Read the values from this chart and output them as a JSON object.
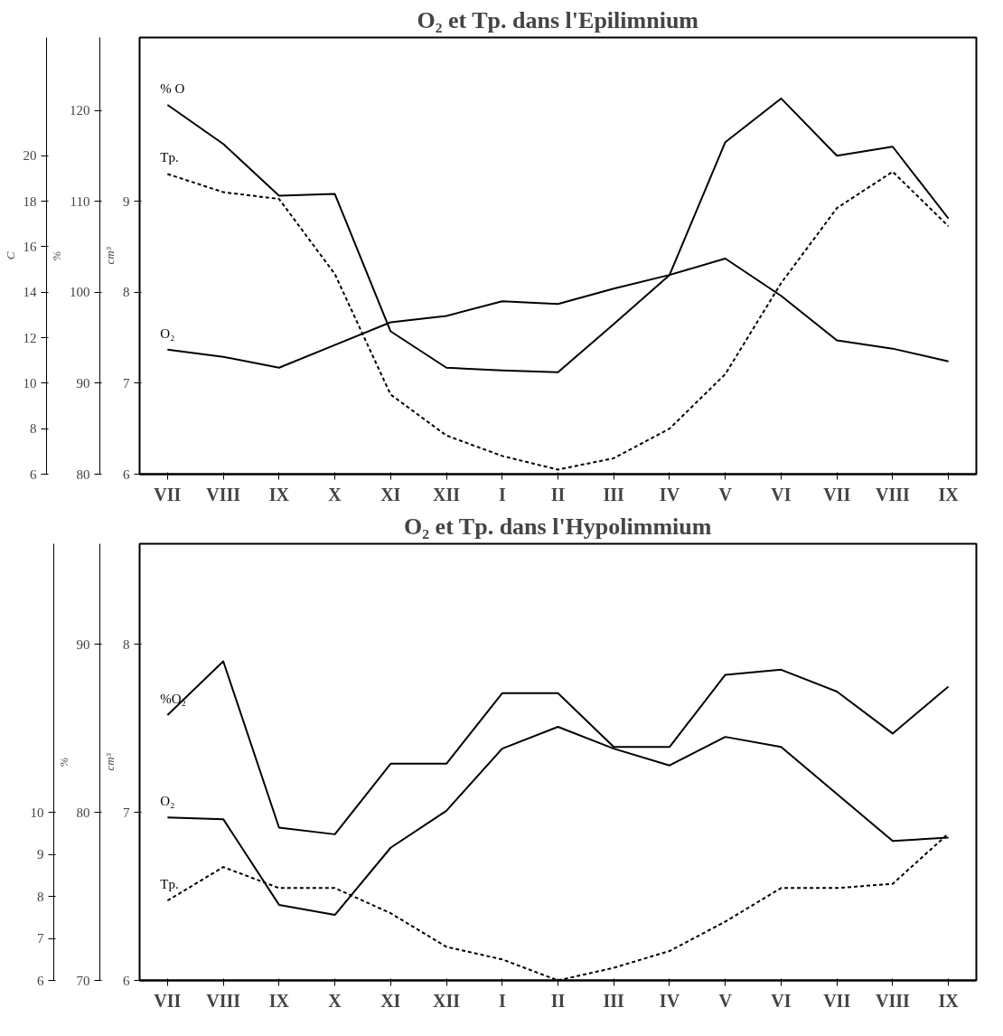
{
  "chart_data": [
    {
      "type": "line",
      "title": "O₂ et Tp. dans l'Epilimnium",
      "categories": [
        "VII",
        "VIII",
        "IX",
        "X",
        "XI",
        "XII",
        "I",
        "II",
        "III",
        "IV",
        "V",
        "VI",
        "VII",
        "VIII",
        "IX"
      ],
      "series": [
        {
          "name": "% O",
          "color": "#000000",
          "axis": "y2",
          "line_style": "solid",
          "values": [
            120.6,
            116.3,
            110.6,
            110.8,
            95.7,
            91.7,
            91.4,
            91.2,
            96.5,
            101.9,
            116.5,
            121.3,
            115.0,
            116.0,
            108.1
          ]
        },
        {
          "name": "Tp.",
          "color": "#000000",
          "axis": "y3",
          "line_style": "dashed",
          "values": [
            19.2,
            18.4,
            18.1,
            14.8,
            9.5,
            7.7,
            6.8,
            6.2,
            6.7,
            8.0,
            10.4,
            14.4,
            17.7,
            19.3,
            16.9
          ]
        },
        {
          "name": "O₂",
          "color": "#000000",
          "axis": "y",
          "line_style": "solid",
          "values": [
            7.37,
            7.29,
            7.17,
            7.42,
            7.67,
            7.74,
            7.9,
            7.87,
            8.04,
            8.19,
            8.37,
            7.96,
            7.47,
            7.38,
            7.24
          ]
        }
      ],
      "ylabel": "cm³",
      "ylim": [
        6,
        10.8
      ],
      "yticks": [
        6,
        7,
        8,
        9
      ],
      "y2label": "%",
      "y2lim": [
        80,
        128
      ],
      "y2ticks": [
        80,
        90,
        100,
        110,
        120
      ],
      "y3label": "C",
      "y3lim": [
        6,
        25.2
      ],
      "y3ticks": [
        6,
        8,
        10,
        12,
        14,
        16,
        18,
        20
      ],
      "grid": false,
      "legend": false
    },
    {
      "type": "line",
      "title": "O₂ et Tp. dans l'Hypolimmium",
      "categories": [
        "VII",
        "VIII",
        "IX",
        "X",
        "XI",
        "XII",
        "I",
        "II",
        "III",
        "IV",
        "V",
        "VI",
        "VII",
        "VIII",
        "IX"
      ],
      "series": [
        {
          "name": "%O₂",
          "color": "#000000",
          "axis": "y2",
          "line_style": "solid",
          "values": [
            85.8,
            89.0,
            79.1,
            78.7,
            82.9,
            82.9,
            87.1,
            87.1,
            83.9,
            83.9,
            88.2,
            88.5,
            87.2,
            84.7,
            87.5
          ]
        },
        {
          "name": "O₂",
          "color": "#000000",
          "axis": "y",
          "line_style": "solid",
          "values": [
            6.97,
            6.96,
            6.45,
            6.39,
            6.79,
            7.01,
            7.38,
            7.51,
            7.38,
            7.28,
            7.45,
            7.39,
            7.11,
            6.83,
            6.85
          ]
        },
        {
          "name": "Tp.",
          "color": "#000000",
          "axis": "y3",
          "line_style": "dashed",
          "values": [
            7.9,
            8.7,
            8.2,
            8.2,
            7.6,
            6.8,
            6.5,
            6.0,
            6.3,
            6.7,
            7.4,
            8.2,
            8.2,
            8.3,
            9.5
          ]
        }
      ],
      "ylabel": "cm³",
      "ylim": [
        6,
        8.6
      ],
      "yticks": [
        6,
        7,
        8
      ],
      "y2label": "%",
      "y2lim": [
        70,
        96
      ],
      "y2ticks": [
        70,
        80,
        90
      ],
      "y3lim": [
        6,
        16.4
      ],
      "y3ticks": [
        6,
        7,
        8,
        9,
        10
      ],
      "grid": false,
      "legend": false
    }
  ]
}
